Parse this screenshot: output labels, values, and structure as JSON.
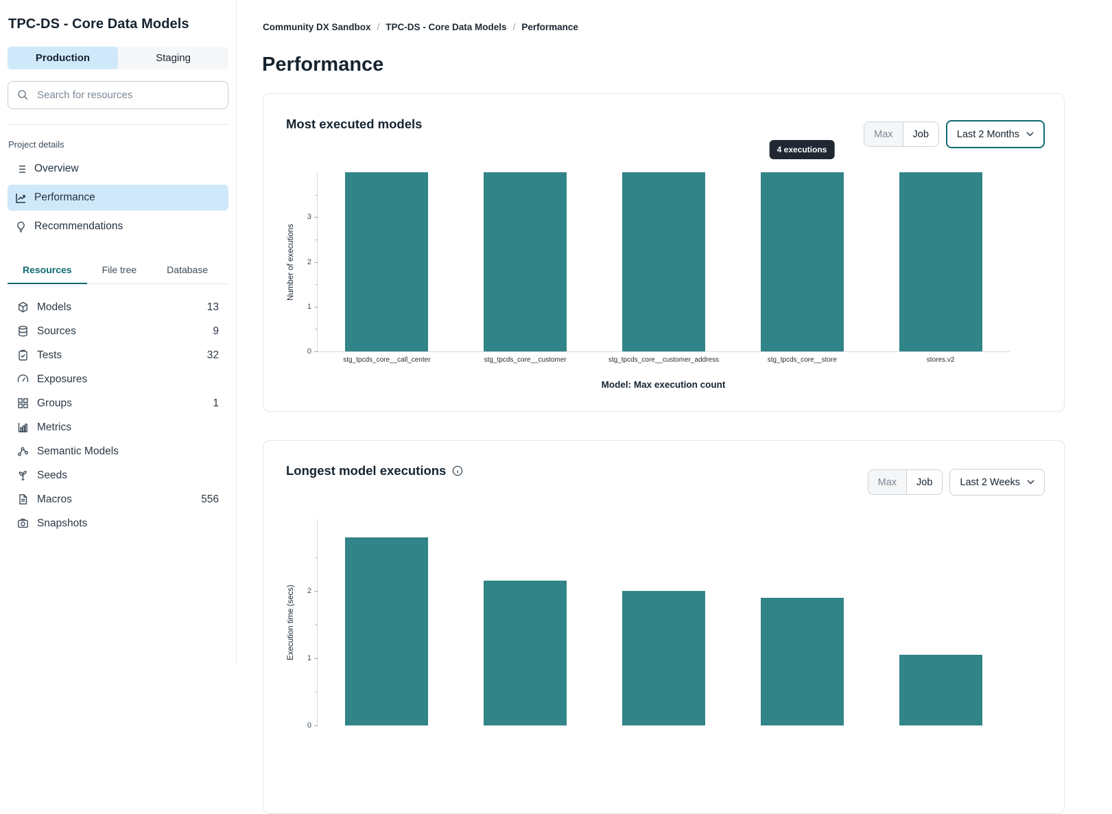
{
  "sidebar": {
    "project_title": "TPC-DS - Core Data Models",
    "env_toggle": {
      "production": "Production",
      "staging": "Staging"
    },
    "search_placeholder": "Search for resources",
    "project_details_label": "Project details",
    "nav": [
      {
        "label": "Overview",
        "icon": "list-icon",
        "active": false
      },
      {
        "label": "Performance",
        "icon": "trend-chart-icon",
        "active": true
      },
      {
        "label": "Recommendations",
        "icon": "lightbulb-icon",
        "active": false
      }
    ],
    "tabs": [
      {
        "label": "Resources",
        "active": true
      },
      {
        "label": "File tree",
        "active": false
      },
      {
        "label": "Database",
        "active": false
      }
    ],
    "resources": [
      {
        "label": "Models",
        "count": "13",
        "icon": "cube-icon"
      },
      {
        "label": "Sources",
        "count": "9",
        "icon": "database-icon"
      },
      {
        "label": "Tests",
        "count": "32",
        "icon": "clipboard-check-icon"
      },
      {
        "label": "Exposures",
        "icon": "gauge-icon"
      },
      {
        "label": "Groups",
        "count": "1",
        "icon": "grid-icon"
      },
      {
        "label": "Metrics",
        "icon": "bar-chart-icon"
      },
      {
        "label": "Semantic Models",
        "icon": "nodes-icon"
      },
      {
        "label": "Seeds",
        "icon": "seedling-icon"
      },
      {
        "label": "Macros",
        "count": "556",
        "icon": "document-icon"
      },
      {
        "label": "Snapshots",
        "icon": "camera-icon"
      }
    ]
  },
  "breadcrumb": [
    "Community DX Sandbox",
    "TPC-DS - Core Data Models",
    "Performance"
  ],
  "page_title": "Performance",
  "cards": [
    {
      "title": "Most executed models",
      "max_label": "Max",
      "job_label": "Job",
      "range_value": "Last 2 Months",
      "tooltip": "4 executions"
    },
    {
      "title": "Longest model executions",
      "max_label": "Max",
      "job_label": "Job",
      "range_value": "Last 2 Weeks"
    }
  ],
  "chart_data": [
    {
      "type": "bar",
      "title": "Most executed models",
      "categories": [
        "stg_tpcds_core__call_center",
        "stg_tpcds_core__customer",
        "stg_tpcds_core__customer_address",
        "stg_tpcds_core__store",
        "stores.v2"
      ],
      "values": [
        4,
        4,
        4,
        4,
        4
      ],
      "ylabel": "Number of executions",
      "xlabel": "Model: Max execution count",
      "ylim": [
        0,
        4
      ],
      "yticks": [
        0,
        1,
        2,
        3,
        4
      ],
      "grid": false,
      "legend": false,
      "annotation": {
        "text": "4 executions",
        "bar_index": 3
      }
    },
    {
      "type": "bar",
      "title": "Longest model executions",
      "values": [
        2.8,
        2.15,
        2.0,
        1.9,
        1.05
      ],
      "ylabel": "Execution time (secs)",
      "ylim": [
        0,
        3
      ],
      "yticks": [
        1,
        2
      ],
      "grid": false,
      "legend": false,
      "note": "chart truncated at bottom of viewport"
    }
  ],
  "colors": {
    "bar": "#318487",
    "accent_teal": "#0e6970",
    "selected_blue": "#cfe8fa",
    "tooltip_bg": "#202733"
  }
}
